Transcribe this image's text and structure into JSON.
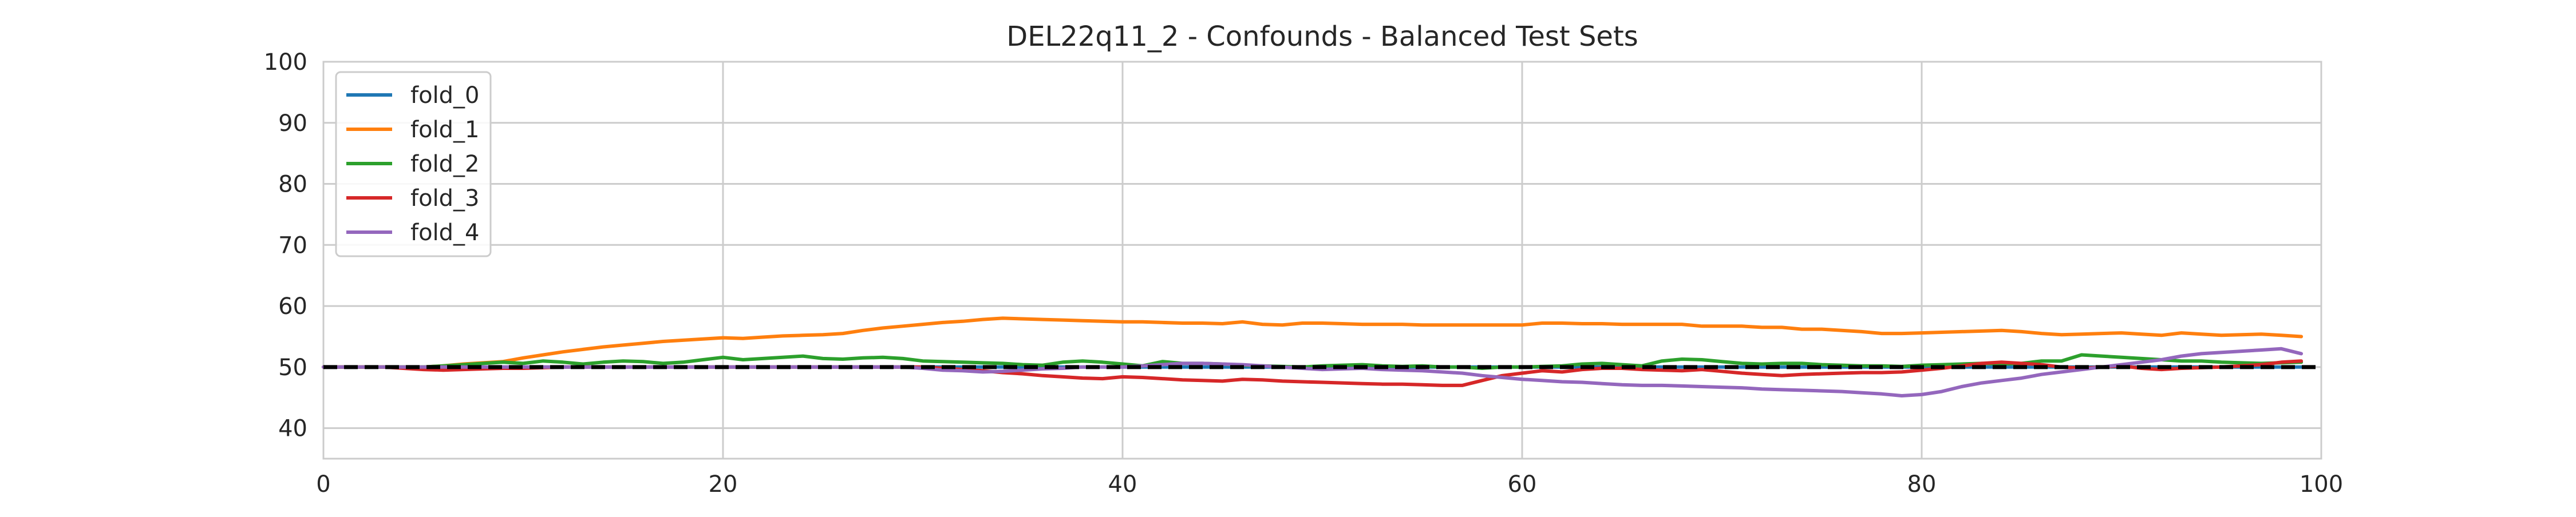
{
  "chart_data": {
    "type": "line",
    "title": "DEL22q11_2 - Confounds - Balanced Test Sets",
    "xlabel": "",
    "ylabel": "",
    "xlim": [
      0,
      100
    ],
    "ylim": [
      35,
      100
    ],
    "xticks": [
      0,
      20,
      40,
      60,
      80,
      100
    ],
    "yticks": [
      40,
      50,
      60,
      70,
      80,
      90,
      100
    ],
    "grid": true,
    "legend_position": "top-left",
    "reference_line": {
      "y": 50,
      "style": "dashed",
      "color": "#000000"
    },
    "x": [
      0,
      1,
      2,
      3,
      4,
      5,
      6,
      7,
      8,
      9,
      10,
      11,
      12,
      13,
      14,
      15,
      16,
      17,
      18,
      19,
      20,
      21,
      22,
      23,
      24,
      25,
      26,
      27,
      28,
      29,
      30,
      31,
      32,
      33,
      34,
      35,
      36,
      37,
      38,
      39,
      40,
      41,
      42,
      43,
      44,
      45,
      46,
      47,
      48,
      49,
      50,
      51,
      52,
      53,
      54,
      55,
      56,
      57,
      58,
      59,
      60,
      61,
      62,
      63,
      64,
      65,
      66,
      67,
      68,
      69,
      70,
      71,
      72,
      73,
      74,
      75,
      76,
      77,
      78,
      79,
      80,
      81,
      82,
      83,
      84,
      85,
      86,
      87,
      88,
      89,
      90,
      91,
      92,
      93,
      94,
      95,
      96,
      97,
      98,
      99
    ],
    "series": [
      {
        "name": "fold_0",
        "color": "#1f77b4",
        "values": [
          50,
          50,
          50,
          50,
          50,
          50,
          50,
          50,
          50,
          50,
          50,
          50,
          50,
          50,
          50,
          50,
          50,
          50,
          50,
          50,
          50,
          50,
          50,
          50,
          50,
          50,
          50,
          50,
          50,
          50,
          50,
          50,
          50,
          50,
          50,
          50,
          50,
          50,
          50,
          50,
          50,
          50,
          50,
          50,
          50,
          50,
          50,
          50,
          50,
          50,
          50,
          50,
          50,
          50,
          50,
          50,
          50,
          50,
          50,
          50,
          50,
          50,
          50,
          50,
          50,
          50,
          50,
          50,
          50,
          50,
          50,
          50,
          50,
          50,
          50,
          50,
          50,
          50,
          50,
          50,
          50,
          50,
          50,
          50,
          50,
          50,
          50,
          50,
          50,
          50,
          50,
          50,
          50,
          50,
          50,
          50,
          50,
          50,
          50,
          50
        ]
      },
      {
        "name": "fold_1",
        "color": "#ff7f0e",
        "values": [
          50,
          50,
          50,
          50,
          50,
          50,
          50.2,
          50.5,
          50.7,
          50.9,
          51.5,
          52.0,
          52.5,
          52.9,
          53.3,
          53.6,
          53.9,
          54.2,
          54.4,
          54.6,
          54.8,
          54.7,
          54.9,
          55.1,
          55.2,
          55.3,
          55.5,
          56.0,
          56.4,
          56.7,
          57.0,
          57.3,
          57.5,
          57.8,
          58.0,
          57.9,
          57.8,
          57.7,
          57.6,
          57.5,
          57.4,
          57.4,
          57.3,
          57.2,
          57.2,
          57.1,
          57.4,
          57.0,
          56.9,
          57.2,
          57.2,
          57.1,
          57.0,
          57.0,
          57.0,
          56.9,
          56.9,
          56.9,
          56.9,
          56.9,
          56.9,
          57.2,
          57.2,
          57.1,
          57.1,
          57.0,
          57.0,
          57.0,
          57.0,
          56.7,
          56.7,
          56.7,
          56.5,
          56.5,
          56.2,
          56.2,
          56.0,
          55.8,
          55.5,
          55.5,
          55.6,
          55.7,
          55.8,
          55.9,
          56.0,
          55.8,
          55.5,
          55.3,
          55.4,
          55.5,
          55.6,
          55.4,
          55.2,
          55.6,
          55.4,
          55.2,
          55.3,
          55.4,
          55.2,
          55.0
        ]
      },
      {
        "name": "fold_2",
        "color": "#2ca02c",
        "values": [
          50,
          50,
          50,
          50,
          50,
          50,
          50.2,
          50.4,
          50.6,
          50.8,
          50.6,
          51.0,
          50.8,
          50.5,
          50.8,
          51.0,
          50.9,
          50.6,
          50.8,
          51.2,
          51.6,
          51.2,
          51.4,
          51.6,
          51.8,
          51.4,
          51.3,
          51.5,
          51.6,
          51.4,
          51.0,
          50.9,
          50.8,
          50.7,
          50.6,
          50.4,
          50.3,
          50.8,
          51.0,
          50.8,
          50.5,
          50.2,
          50.9,
          50.6,
          50.6,
          50.5,
          50.3,
          50.2,
          50.1,
          50.0,
          50.2,
          50.3,
          50.4,
          50.2,
          50.1,
          50.2,
          50.0,
          50.0,
          49.8,
          50.0,
          50.0,
          50.1,
          50.2,
          50.5,
          50.6,
          50.4,
          50.2,
          51.0,
          51.3,
          51.2,
          50.9,
          50.6,
          50.5,
          50.6,
          50.6,
          50.4,
          50.3,
          50.2,
          50.2,
          50.1,
          50.3,
          50.4,
          50.5,
          50.6,
          50.5,
          50.6,
          51.0,
          51.0,
          52.0,
          51.8,
          51.6,
          51.4,
          51.2,
          51.0,
          51.0,
          50.8,
          50.7,
          50.6,
          50.7,
          50.8
        ]
      },
      {
        "name": "fold_3",
        "color": "#d62728",
        "values": [
          50,
          50,
          50,
          50,
          49.8,
          49.6,
          49.5,
          49.6,
          49.7,
          49.8,
          49.8,
          49.9,
          50.0,
          50.0,
          50.0,
          50.0,
          50.0,
          50.0,
          50.0,
          50.0,
          50.0,
          50.0,
          50.0,
          50.0,
          50.0,
          50.0,
          50.0,
          50.0,
          50.0,
          50.0,
          50.0,
          49.8,
          49.6,
          49.4,
          49.1,
          48.9,
          48.6,
          48.4,
          48.2,
          48.1,
          48.4,
          48.3,
          48.1,
          47.9,
          47.8,
          47.7,
          48.0,
          47.9,
          47.7,
          47.6,
          47.5,
          47.4,
          47.3,
          47.2,
          47.2,
          47.1,
          47.0,
          47.0,
          47.8,
          48.6,
          49.0,
          49.4,
          49.2,
          49.6,
          49.8,
          49.8,
          49.6,
          49.5,
          49.4,
          49.6,
          49.3,
          49.0,
          48.8,
          48.6,
          48.8,
          48.9,
          49.0,
          49.1,
          49.1,
          49.2,
          49.5,
          49.8,
          50.2,
          50.6,
          50.8,
          50.6,
          50.4,
          50.0,
          49.8,
          50.0,
          50.2,
          49.8,
          49.6,
          49.8,
          49.9,
          50.0,
          50.2,
          50.4,
          50.8,
          51.0
        ]
      },
      {
        "name": "fold_4",
        "color": "#9467bd",
        "values": [
          50,
          50,
          50,
          50,
          50,
          50,
          50,
          50,
          50,
          50,
          50,
          50,
          50,
          50,
          50,
          50,
          50,
          50,
          50,
          50,
          50,
          50,
          50,
          50,
          50,
          50,
          50,
          50,
          50,
          50,
          49.8,
          49.5,
          49.4,
          49.2,
          49.3,
          49.5,
          49.7,
          49.8,
          50.0,
          50.0,
          50.0,
          50.2,
          50.4,
          50.6,
          50.6,
          50.5,
          50.4,
          50.2,
          50.0,
          49.8,
          49.6,
          49.7,
          49.8,
          49.6,
          49.5,
          49.4,
          49.2,
          49.0,
          48.6,
          48.3,
          48.0,
          47.8,
          47.6,
          47.5,
          47.3,
          47.1,
          47.0,
          47.0,
          46.9,
          46.8,
          46.7,
          46.6,
          46.4,
          46.3,
          46.2,
          46.1,
          46.0,
          45.8,
          45.6,
          45.3,
          45.5,
          46.0,
          46.8,
          47.4,
          47.8,
          48.2,
          48.8,
          49.2,
          49.6,
          50.0,
          50.4,
          50.8,
          51.2,
          51.8,
          52.2,
          52.4,
          52.6,
          52.8,
          53.0,
          52.2
        ]
      }
    ]
  }
}
